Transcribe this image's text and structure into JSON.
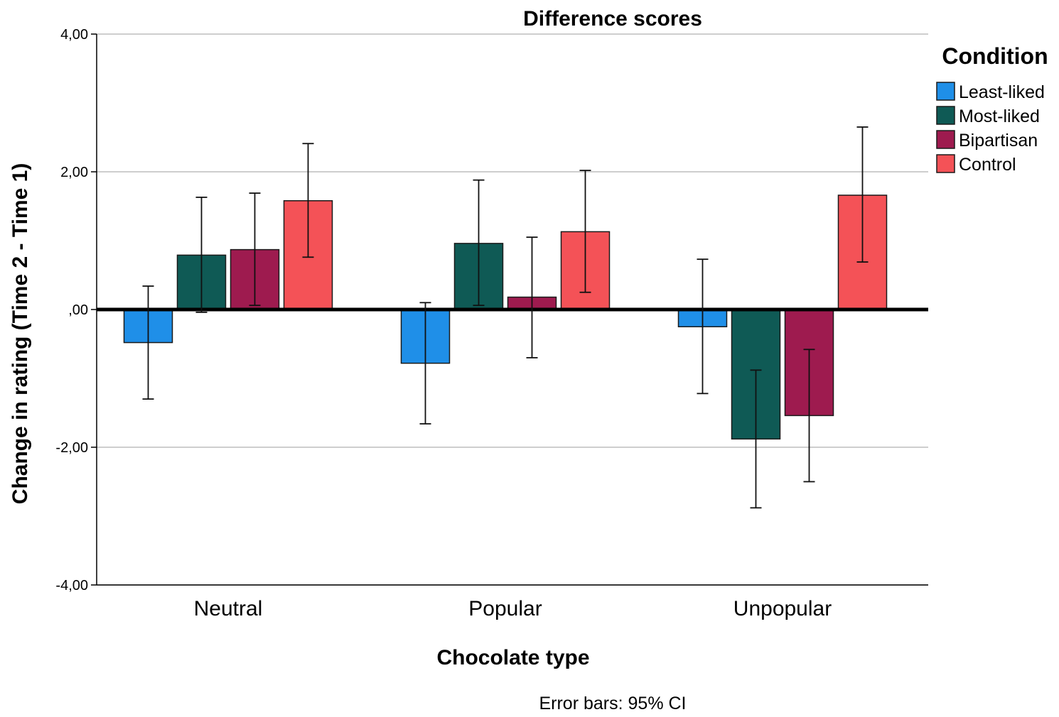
{
  "chart_data": {
    "type": "bar",
    "title": "Difference scores",
    "xlabel": "Chocolate type",
    "ylabel": "Change in rating (Time 2 - Time 1)",
    "ylim": [
      -4,
      4
    ],
    "yticks": [
      4,
      2,
      0,
      -2,
      -4
    ],
    "ytick_labels": [
      "4,00",
      "2,00",
      ",00",
      "-2,00",
      "-4,00"
    ],
    "grid": true,
    "categories": [
      "Neutral",
      "Popular",
      "Unpopular"
    ],
    "legend": {
      "title": "Condition",
      "position": "top-right"
    },
    "series": [
      {
        "name": "Least-liked",
        "color": "#1f8fe8",
        "values": [
          -0.48,
          -0.78,
          -0.25
        ],
        "ci_low": [
          -1.3,
          -1.66,
          -1.22
        ],
        "ci_high": [
          0.34,
          0.1,
          0.73
        ]
      },
      {
        "name": "Most-liked",
        "color": "#0f5a55",
        "values": [
          0.79,
          0.96,
          -1.88
        ],
        "ci_low": [
          -0.04,
          0.06,
          -2.88
        ],
        "ci_high": [
          1.63,
          1.88,
          -0.88
        ]
      },
      {
        "name": "Bipartisan",
        "color": "#9e1b4f",
        "values": [
          0.87,
          0.18,
          -1.54
        ],
        "ci_low": [
          0.06,
          -0.7,
          -2.5
        ],
        "ci_high": [
          1.69,
          1.05,
          -0.58
        ]
      },
      {
        "name": "Control",
        "color": "#f45257",
        "values": [
          1.58,
          1.13,
          1.66
        ],
        "ci_low": [
          0.76,
          0.25,
          0.69
        ],
        "ci_high": [
          2.41,
          2.02,
          2.65
        ]
      }
    ],
    "note": "Error bars: 95% CI"
  }
}
